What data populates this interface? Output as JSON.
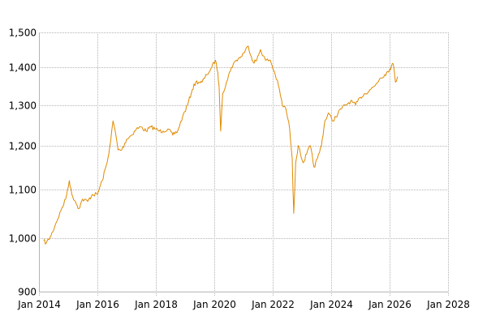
{
  "chart_data": {
    "type": "line",
    "title": "",
    "xlabel": "",
    "ylabel": "",
    "y_scale": "log",
    "ylim": [
      900,
      1500
    ],
    "xlim": [
      "2014-01-01",
      "2028-01-01"
    ],
    "grid": true,
    "legend": "none",
    "line_color": "#e08a00",
    "grid_color": "#b4b4b4",
    "y_ticks": [
      {
        "value": 900,
        "label": "900"
      },
      {
        "value": 1000,
        "label": "1,000"
      },
      {
        "value": 1100,
        "label": "1,100"
      },
      {
        "value": 1200,
        "label": "1,200"
      },
      {
        "value": 1300,
        "label": "1,300"
      },
      {
        "value": 1400,
        "label": "1,400"
      },
      {
        "value": 1500,
        "label": "1,500"
      }
    ],
    "x_ticks": [
      {
        "value": "2014-01-01",
        "label": "Jan 2014"
      },
      {
        "value": "2016-01-01",
        "label": "Jan 2016"
      },
      {
        "value": "2018-01-01",
        "label": "Jan 2018"
      },
      {
        "value": "2020-01-01",
        "label": "Jan 2020"
      },
      {
        "value": "2022-01-01",
        "label": "Jan 2022"
      },
      {
        "value": "2024-01-01",
        "label": "Jan 2024"
      },
      {
        "value": "2026-01-01",
        "label": "Jan 2026"
      },
      {
        "value": "2028-01-01",
        "label": "Jan 2028"
      }
    ],
    "series": [
      {
        "x": [
          "2014-03-01",
          "2014-04-01",
          "2014-06-01",
          "2014-08-01",
          "2014-10-01",
          "2014-12-01",
          "2015-01-15",
          "2015-02-15",
          "2015-04-01",
          "2015-05-15",
          "2015-07-01",
          "2015-09-01",
          "2015-11-01",
          "2016-01-01",
          "2016-03-01",
          "2016-05-01",
          "2016-06-15",
          "2016-07-15",
          "2016-08-15",
          "2016-09-15",
          "2016-11-01",
          "2017-01-01",
          "2017-03-01",
          "2017-05-01",
          "2017-07-01",
          "2017-09-01",
          "2017-11-01",
          "2018-01-01",
          "2018-02-15",
          "2018-04-01",
          "2018-06-01",
          "2018-08-01",
          "2018-10-01",
          "2018-12-01",
          "2019-02-01",
          "2019-04-01",
          "2019-05-15",
          "2019-07-01",
          "2019-08-01",
          "2019-10-01",
          "2019-12-01",
          "2020-01-15",
          "2020-02-15",
          "2020-03-01",
          "2020-03-20",
          "2020-04-15",
          "2020-06-01",
          "2020-08-01",
          "2020-10-01",
          "2020-12-01",
          "2021-01-01",
          "2021-03-01",
          "2021-05-01",
          "2021-06-15",
          "2021-08-01",
          "2021-10-01",
          "2021-12-01",
          "2022-02-01",
          "2022-03-15",
          "2022-05-01",
          "2022-06-15",
          "2022-08-01",
          "2022-09-01",
          "2022-09-20",
          "2022-10-15",
          "2022-11-15",
          "2022-12-15",
          "2023-01-15",
          "2023-03-01",
          "2023-04-15",
          "2023-06-01",
          "2023-07-15",
          "2023-09-01",
          "2023-10-15",
          "2023-12-01",
          "2024-01-15",
          "2024-03-01",
          "2024-05-01",
          "2024-07-01",
          "2024-09-01",
          "2024-11-01",
          "2025-01-01",
          "2025-03-01",
          "2025-05-01",
          "2025-07-01",
          "2025-09-01",
          "2025-11-01",
          "2026-01-01",
          "2026-02-15",
          "2026-03-15",
          "2026-04-10"
        ],
        "values": [
          995,
          990,
          1005,
          1030,
          1055,
          1080,
          1120,
          1090,
          1075,
          1060,
          1080,
          1075,
          1090,
          1090,
          1120,
          1160,
          1210,
          1260,
          1230,
          1190,
          1190,
          1215,
          1225,
          1240,
          1245,
          1235,
          1245,
          1240,
          1235,
          1235,
          1240,
          1225,
          1235,
          1270,
          1300,
          1340,
          1360,
          1360,
          1360,
          1380,
          1400,
          1420,
          1385,
          1350,
          1235,
          1330,
          1360,
          1400,
          1420,
          1430,
          1440,
          1460,
          1415,
          1420,
          1450,
          1420,
          1420,
          1380,
          1350,
          1300,
          1290,
          1240,
          1170,
          1050,
          1160,
          1200,
          1180,
          1160,
          1180,
          1200,
          1150,
          1170,
          1200,
          1260,
          1280,
          1260,
          1270,
          1290,
          1300,
          1310,
          1300,
          1320,
          1330,
          1340,
          1350,
          1370,
          1380,
          1395,
          1410,
          1360,
          1375
        ]
      }
    ]
  }
}
